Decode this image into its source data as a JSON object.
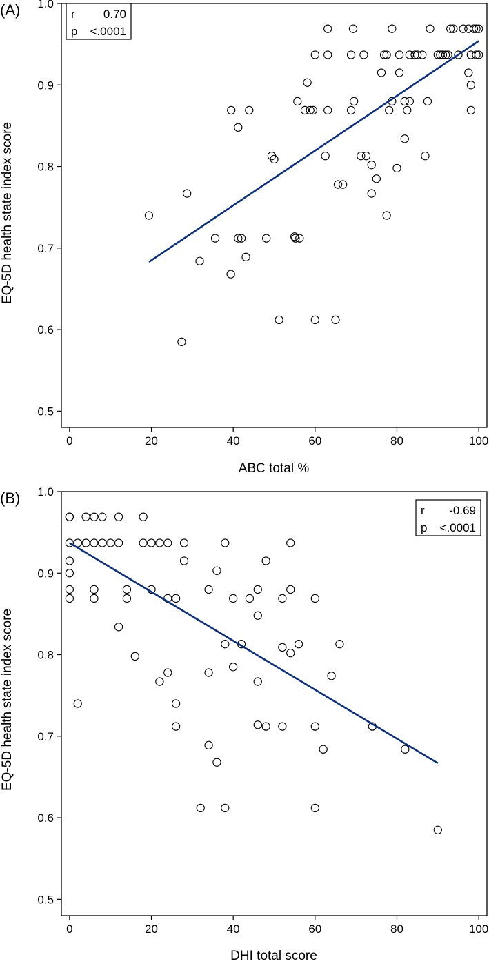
{
  "figure": {
    "description": "Two-panel scatter plot figure"
  },
  "chart_data": [
    {
      "type": "scatter",
      "panel_label": "(A)",
      "xlabel": "ABC total %",
      "ylabel": "EQ-5D health state index score",
      "xlim": [
        -2,
        102
      ],
      "ylim": [
        0.48,
        1.0
      ],
      "xticks": [
        0,
        20,
        40,
        60,
        80,
        100
      ],
      "xtick_labels": [
        "0",
        "20",
        "40",
        "60",
        "80",
        "100"
      ],
      "yticks": [
        0.5,
        0.6,
        0.7,
        0.8,
        0.9,
        1.0
      ],
      "ytick_labels": [
        "0.5",
        "0.6",
        "0.7",
        "0.8",
        "0.9",
        "1.0"
      ],
      "grid": false,
      "line_color": "#0b2f80",
      "stats": {
        "position": "top-left",
        "r_label": "r",
        "r_value": "0.70",
        "p_label": "p",
        "p_value": "<.0001"
      },
      "fit_line": {
        "x": [
          19.4,
          100
        ],
        "y": [
          0.683,
          0.954
        ]
      },
      "points": [
        [
          19.4,
          0.74
        ],
        [
          28.7,
          0.767
        ],
        [
          27.4,
          0.585
        ],
        [
          31.8,
          0.684
        ],
        [
          35.6,
          0.712
        ],
        [
          39.5,
          0.869
        ],
        [
          39.4,
          0.668
        ],
        [
          41.2,
          0.848
        ],
        [
          41.2,
          0.712
        ],
        [
          42.0,
          0.712
        ],
        [
          43.1,
          0.689
        ],
        [
          43.9,
          0.869
        ],
        [
          48.1,
          0.712
        ],
        [
          49.4,
          0.813
        ],
        [
          50.0,
          0.809
        ],
        [
          51.2,
          0.612
        ],
        [
          55.0,
          0.714
        ],
        [
          55.2,
          0.712
        ],
        [
          55.7,
          0.88
        ],
        [
          56.2,
          0.712
        ],
        [
          57.5,
          0.869
        ],
        [
          58.1,
          0.903
        ],
        [
          58.8,
          0.869
        ],
        [
          59.5,
          0.869
        ],
        [
          60.0,
          0.937
        ],
        [
          60.0,
          0.612
        ],
        [
          63.1,
          0.969
        ],
        [
          63.1,
          0.937
        ],
        [
          63.1,
          0.869
        ],
        [
          62.5,
          0.813
        ],
        [
          65.0,
          0.612
        ],
        [
          65.6,
          0.778
        ],
        [
          66.8,
          0.778
        ],
        [
          68.8,
          0.869
        ],
        [
          68.8,
          0.937
        ],
        [
          69.3,
          0.969
        ],
        [
          69.5,
          0.88
        ],
        [
          71.2,
          0.813
        ],
        [
          71.9,
          0.937
        ],
        [
          72.5,
          0.813
        ],
        [
          73.8,
          0.767
        ],
        [
          73.8,
          0.802
        ],
        [
          75.0,
          0.785
        ],
        [
          76.2,
          0.915
        ],
        [
          76.9,
          0.937
        ],
        [
          77.5,
          0.937
        ],
        [
          77.5,
          0.74
        ],
        [
          78.1,
          0.869
        ],
        [
          78.8,
          0.88
        ],
        [
          78.8,
          0.969
        ],
        [
          80.0,
          0.798
        ],
        [
          80.6,
          0.915
        ],
        [
          80.6,
          0.937
        ],
        [
          81.9,
          0.834
        ],
        [
          81.9,
          0.88
        ],
        [
          82.5,
          0.869
        ],
        [
          83.1,
          0.88
        ],
        [
          83.1,
          0.937
        ],
        [
          84.4,
          0.937
        ],
        [
          85.0,
          0.937
        ],
        [
          86.2,
          0.937
        ],
        [
          86.9,
          0.813
        ],
        [
          87.5,
          0.88
        ],
        [
          88.1,
          0.969
        ],
        [
          90.0,
          0.937
        ],
        [
          90.6,
          0.937
        ],
        [
          91.2,
          0.937
        ],
        [
          91.9,
          0.937
        ],
        [
          92.5,
          0.937
        ],
        [
          93.1,
          0.969
        ],
        [
          93.8,
          0.969
        ],
        [
          95.0,
          0.937
        ],
        [
          96.2,
          0.969
        ],
        [
          97.5,
          0.969
        ],
        [
          97.5,
          0.915
        ],
        [
          98.1,
          0.9
        ],
        [
          98.1,
          0.869
        ],
        [
          98.1,
          0.937
        ],
        [
          98.8,
          0.969
        ],
        [
          99.4,
          0.969
        ],
        [
          99.4,
          0.937
        ],
        [
          100.0,
          0.969
        ],
        [
          100.0,
          0.937
        ]
      ]
    },
    {
      "type": "scatter",
      "panel_label": "(B)",
      "xlabel": "DHI total score",
      "ylabel": "EQ-5D health state index score",
      "xlim": [
        -2,
        102
      ],
      "ylim": [
        0.48,
        1.0
      ],
      "xticks": [
        0,
        20,
        40,
        60,
        80,
        100
      ],
      "xtick_labels": [
        "0",
        "20",
        "40",
        "60",
        "80",
        "100"
      ],
      "yticks": [
        0.5,
        0.6,
        0.7,
        0.8,
        0.9,
        1.0
      ],
      "ytick_labels": [
        "0.5",
        "0.6",
        "0.7",
        "0.8",
        "0.9",
        "1.0"
      ],
      "grid": false,
      "line_color": "#0b2f80",
      "stats": {
        "position": "top-right",
        "r_label": "r",
        "r_value": "-0.69",
        "p_label": "p",
        "p_value": "<.0001"
      },
      "fit_line": {
        "x": [
          0,
          90
        ],
        "y": [
          0.937,
          0.667
        ]
      },
      "points": [
        [
          0,
          0.969
        ],
        [
          0,
          0.969
        ],
        [
          0,
          0.937
        ],
        [
          0,
          0.915
        ],
        [
          0,
          0.9
        ],
        [
          0,
          0.88
        ],
        [
          0,
          0.869
        ],
        [
          2,
          0.937
        ],
        [
          2,
          0.74
        ],
        [
          4,
          0.969
        ],
        [
          4,
          0.937
        ],
        [
          6,
          0.969
        ],
        [
          6,
          0.937
        ],
        [
          6,
          0.88
        ],
        [
          6,
          0.869
        ],
        [
          8,
          0.969
        ],
        [
          8,
          0.937
        ],
        [
          10,
          0.937
        ],
        [
          12,
          0.969
        ],
        [
          12,
          0.937
        ],
        [
          12,
          0.834
        ],
        [
          14,
          0.88
        ],
        [
          14,
          0.869
        ],
        [
          16,
          0.798
        ],
        [
          18,
          0.969
        ],
        [
          18,
          0.937
        ],
        [
          20,
          0.937
        ],
        [
          20,
          0.88
        ],
        [
          22,
          0.937
        ],
        [
          22,
          0.767
        ],
        [
          24,
          0.937
        ],
        [
          24,
          0.869
        ],
        [
          24,
          0.778
        ],
        [
          26,
          0.869
        ],
        [
          26,
          0.74
        ],
        [
          26,
          0.712
        ],
        [
          28,
          0.937
        ],
        [
          28,
          0.915
        ],
        [
          32,
          0.612
        ],
        [
          34,
          0.88
        ],
        [
          34,
          0.778
        ],
        [
          34,
          0.689
        ],
        [
          36,
          0.903
        ],
        [
          36,
          0.668
        ],
        [
          38,
          0.937
        ],
        [
          38,
          0.813
        ],
        [
          38,
          0.612
        ],
        [
          40,
          0.869
        ],
        [
          40,
          0.785
        ],
        [
          42,
          0.813
        ],
        [
          44,
          0.869
        ],
        [
          46,
          0.88
        ],
        [
          46,
          0.848
        ],
        [
          46,
          0.767
        ],
        [
          46,
          0.714
        ],
        [
          48,
          0.915
        ],
        [
          48,
          0.712
        ],
        [
          52,
          0.869
        ],
        [
          52,
          0.809
        ],
        [
          52,
          0.712
        ],
        [
          54,
          0.937
        ],
        [
          54,
          0.88
        ],
        [
          54,
          0.802
        ],
        [
          56,
          0.813
        ],
        [
          60,
          0.869
        ],
        [
          60,
          0.712
        ],
        [
          60,
          0.612
        ],
        [
          62,
          0.684
        ],
        [
          64,
          0.774
        ],
        [
          66,
          0.813
        ],
        [
          74,
          0.712
        ],
        [
          82,
          0.684
        ],
        [
          90,
          0.585
        ]
      ]
    }
  ]
}
